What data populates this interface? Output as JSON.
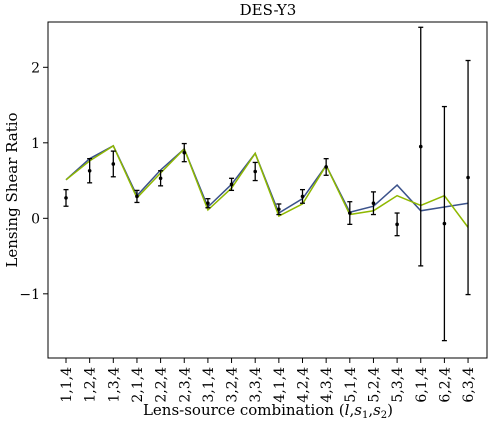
{
  "chart_data": {
    "type": "line",
    "title": "DES-Y3",
    "xlabel": "Lens-source combination (l,s1,s2)",
    "xlabel_parts": {
      "prefix": "Lens-source combination (",
      "l": "l",
      "sep1": ",",
      "s1": "s",
      "s1_sub": "1",
      "sep2": ",",
      "s2": "s",
      "s2_sub": "2",
      "suffix": ")"
    },
    "ylabel": "Lensing Shear Ratio",
    "ylim": [
      -1.85,
      2.6
    ],
    "yticks": [
      -1,
      0,
      1,
      2
    ],
    "ytick_labels": [
      "−1",
      "0",
      "1",
      "2"
    ],
    "grid": false,
    "categories": [
      "1,1,4",
      "1,2,4",
      "1,3,4",
      "2,1,4",
      "2,2,4",
      "2,3,4",
      "3,1,4",
      "3,2,4",
      "3,3,4",
      "4,1,4",
      "4,2,4",
      "4,3,4",
      "5,1,4",
      "5,2,4",
      "5,3,4",
      "6,1,4",
      "6,2,4",
      "6,3,4"
    ],
    "series": [
      {
        "kind": "line",
        "color": "#3b528b",
        "values": [
          0.51,
          0.79,
          0.96,
          0.3,
          0.64,
          0.92,
          0.15,
          0.45,
          0.86,
          0.07,
          0.26,
          0.7,
          0.08,
          0.16,
          0.44,
          0.1,
          0.15,
          0.2
        ]
      },
      {
        "kind": "line",
        "color": "#8fb800",
        "values": [
          0.51,
          0.76,
          0.96,
          0.27,
          0.6,
          0.92,
          0.11,
          0.4,
          0.86,
          0.03,
          0.19,
          0.7,
          0.05,
          0.1,
          0.3,
          0.17,
          0.3,
          -0.12
        ]
      },
      {
        "kind": "errorbar",
        "color": "#000000",
        "values": [
          0.27,
          0.63,
          0.72,
          0.29,
          0.53,
          0.87,
          0.2,
          0.45,
          0.62,
          0.12,
          0.29,
          0.68,
          0.07,
          0.2,
          -0.08,
          0.95,
          -0.07,
          0.54
        ],
        "errors": [
          0.11,
          0.16,
          0.17,
          0.08,
          0.1,
          0.12,
          0.06,
          0.08,
          0.12,
          0.07,
          0.09,
          0.11,
          0.15,
          0.15,
          0.15,
          1.58,
          1.55,
          1.55
        ]
      }
    ]
  }
}
